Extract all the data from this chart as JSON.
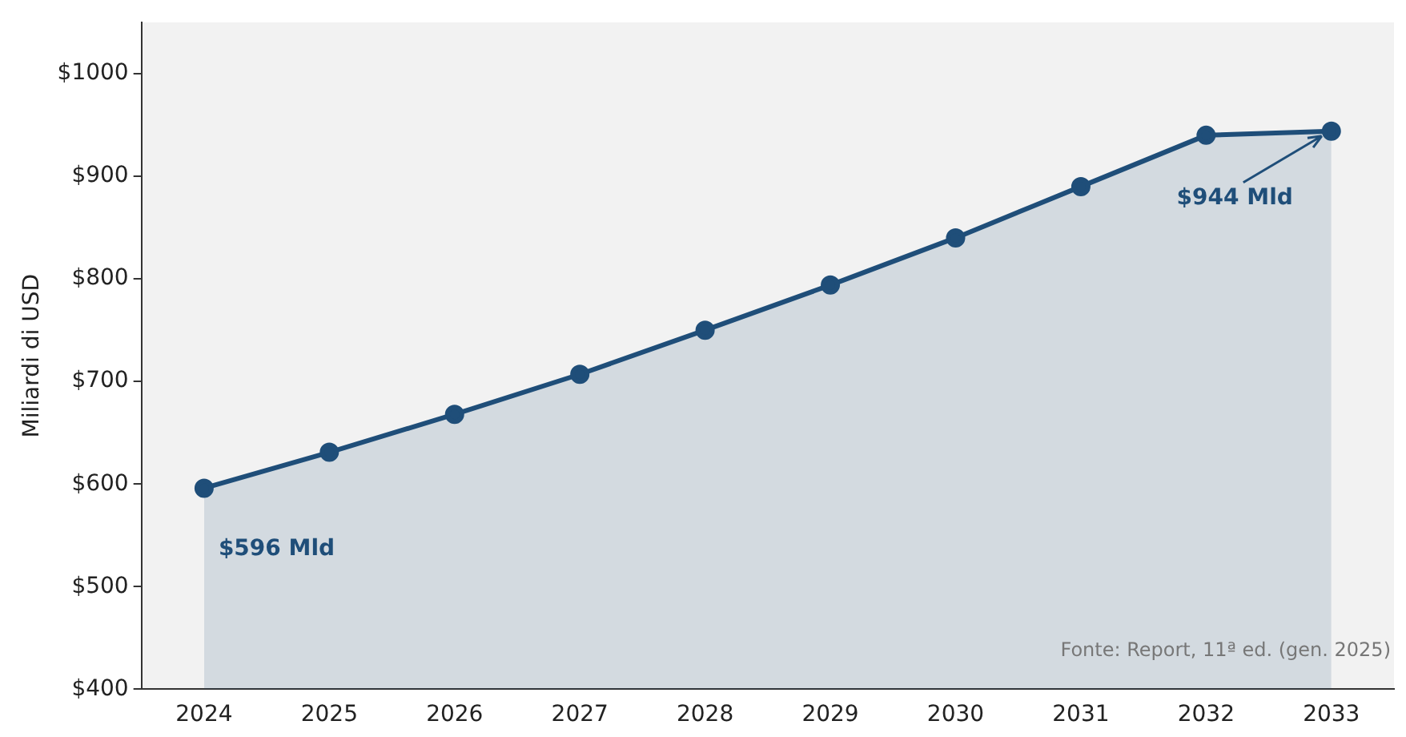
{
  "chart_data": {
    "type": "area",
    "ylabel": "Miliardi di USD",
    "categories": [
      "2024",
      "2025",
      "2026",
      "2027",
      "2028",
      "2029",
      "2030",
      "2031",
      "2032",
      "2033"
    ],
    "series": [
      {
        "color": "#1f4e79",
        "values": [
          596,
          631,
          668,
          707,
          750,
          794,
          840,
          890,
          940,
          944
        ]
      }
    ],
    "ylim": [
      400,
      1050
    ],
    "yticks": [
      {
        "value": 400,
        "label": "$400"
      },
      {
        "value": 500,
        "label": "$500"
      },
      {
        "value": 600,
        "label": "$600"
      },
      {
        "value": 700,
        "label": "$700"
      },
      {
        "value": 800,
        "label": "$800"
      },
      {
        "value": 900,
        "label": "$900"
      },
      {
        "value": 1000,
        "label": "$1000"
      }
    ],
    "grid": false,
    "legend": false,
    "marker": "circle",
    "annotations": [
      {
        "text": "$596 Mld",
        "x": "2024",
        "y": 596
      },
      {
        "text": "$944 Mld",
        "x": "2033",
        "y": 944
      },
      "Fonte: Report, 11ª ed. (gen. 2025)"
    ]
  }
}
